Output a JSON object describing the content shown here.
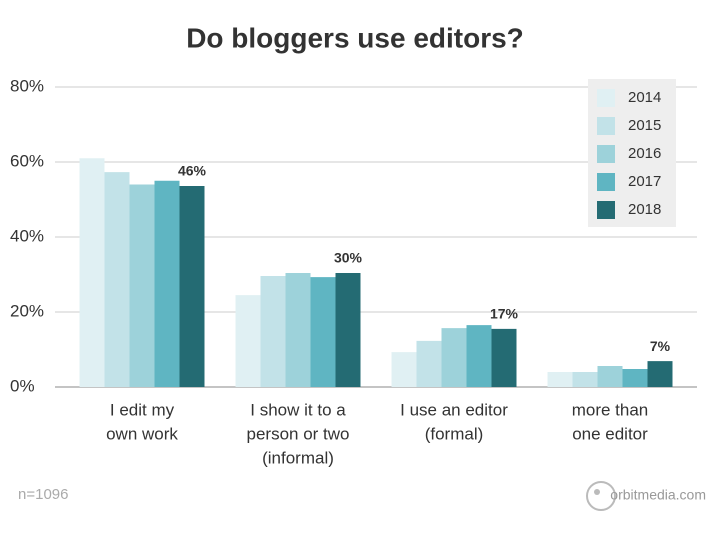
{
  "chart_data": {
    "type": "bar",
    "title": "Do bloggers use editors?",
    "categories": [
      [
        "I edit my",
        "own work"
      ],
      [
        "I show it to a",
        "person or two",
        "(informal)"
      ],
      [
        "I use an editor",
        "(formal)"
      ],
      [
        "more than",
        "one editor"
      ]
    ],
    "series": [
      {
        "name": "2014",
        "color": "#e0f0f3",
        "values": [
          61,
          24.5,
          9.3,
          4
        ]
      },
      {
        "name": "2015",
        "color": "#c2e2e8",
        "values": [
          57.3,
          29.6,
          12.3,
          4
        ]
      },
      {
        "name": "2016",
        "color": "#9dd2da",
        "values": [
          54,
          30.4,
          15.7,
          5.6
        ]
      },
      {
        "name": "2017",
        "color": "#5fb5c2",
        "values": [
          55,
          29.3,
          16.5,
          4.8
        ]
      },
      {
        "name": "2018",
        "color": "#246b73",
        "values": [
          53.6,
          30.4,
          15.5,
          6.9
        ]
      }
    ],
    "annotations": [
      "46%",
      "30%",
      "17%",
      "7%"
    ],
    "ylim": [
      0,
      80
    ],
    "yticks": [
      {
        "value": 0,
        "label": "0%"
      },
      {
        "value": 20,
        "label": "20%"
      },
      {
        "value": 40,
        "label": "40%"
      },
      {
        "value": 60,
        "label": "60%"
      },
      {
        "value": 80,
        "label": "80%"
      }
    ],
    "grid": true,
    "legend": "top-right",
    "note": "n=1096",
    "source": "orbitmedia.com"
  }
}
